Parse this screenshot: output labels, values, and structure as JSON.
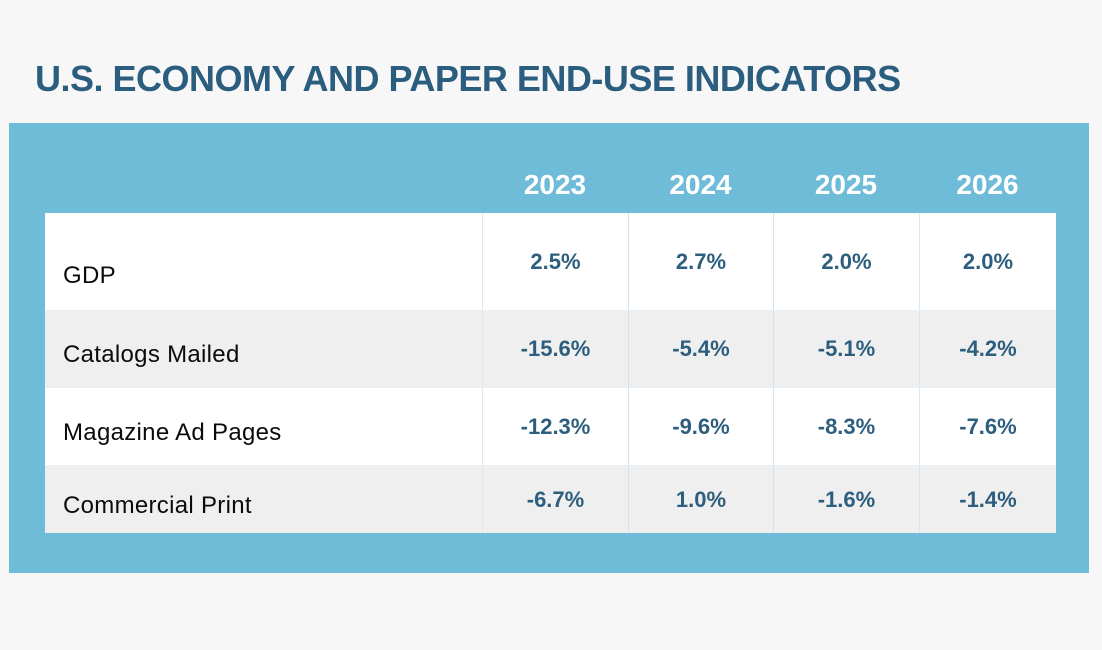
{
  "page": {
    "title": "U.S. ECONOMY AND PAPER END-USE INDICATORS"
  },
  "table": {
    "columns": [
      "2023",
      "2024",
      "2025",
      "2026"
    ],
    "rows": [
      {
        "label": "GDP",
        "values": [
          "2.5%",
          "2.7%",
          "2.0%",
          "2.0%"
        ]
      },
      {
        "label": "Catalogs Mailed",
        "values": [
          "-15.6%",
          "-5.4%",
          "-5.1%",
          "-4.2%"
        ]
      },
      {
        "label": "Magazine Ad Pages",
        "values": [
          "-12.3%",
          "-9.6%",
          "-8.3%",
          "-7.6%"
        ]
      },
      {
        "label": "Commercial Print",
        "values": [
          "-6.7%",
          "1.0%",
          "-1.6%",
          "-1.4%"
        ]
      }
    ]
  },
  "chart_data": {
    "type": "table",
    "title": "U.S. ECONOMY AND PAPER END-USE INDICATORS",
    "categories": [
      "2023",
      "2024",
      "2025",
      "2026"
    ],
    "series": [
      {
        "name": "GDP",
        "values": [
          2.5,
          2.7,
          2.0,
          2.0
        ]
      },
      {
        "name": "Catalogs Mailed",
        "values": [
          -15.6,
          -5.4,
          -5.1,
          -4.2
        ]
      },
      {
        "name": "Magazine Ad Pages",
        "values": [
          -12.3,
          -9.6,
          -8.3,
          -7.6
        ]
      },
      {
        "name": "Commercial Print",
        "values": [
          -6.7,
          1.0,
          -1.6,
          -1.4
        ]
      }
    ],
    "unit": "%",
    "legend_position": "none",
    "grid": false
  },
  "colors": {
    "panel_blue": "#6FBCD9",
    "title_text": "#2B5D7E",
    "value_text": "#2D5E7E",
    "label_text": "#0B0B0B",
    "stripe_row": "#EFEFEF",
    "page_background": "#F7F7F8",
    "header_text": "#FFFFFF"
  }
}
